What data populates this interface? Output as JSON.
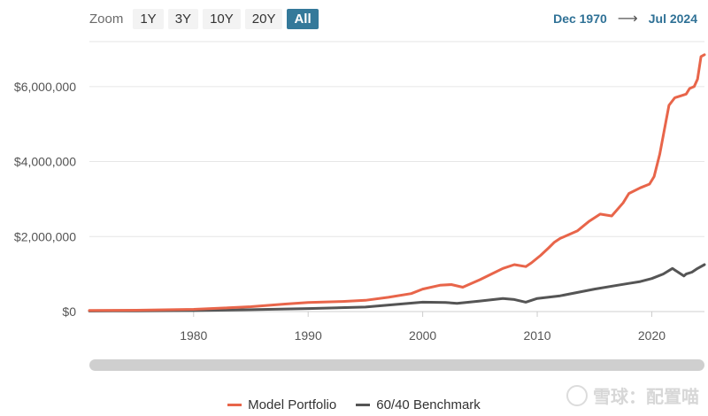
{
  "zoom": {
    "label": "Zoom",
    "buttons": [
      "1Y",
      "3Y",
      "10Y",
      "20Y",
      "All"
    ],
    "active": "All"
  },
  "range": {
    "from": "Dec 1970",
    "arrow": "⟶",
    "to": "Jul 2024"
  },
  "watermark": {
    "text": "雪球：配置喵"
  },
  "colors": {
    "model": "#e8654a",
    "benchmark": "#555555",
    "accent": "#34799a"
  },
  "chart_data": {
    "type": "line",
    "x_axis": {
      "ticks": [
        1980,
        1990,
        2000,
        2010,
        2020
      ],
      "range": [
        1970.9,
        2024.6
      ]
    },
    "y_axis": {
      "ticks": [
        0,
        2000000,
        4000000,
        6000000
      ],
      "tick_labels": [
        "$0",
        "$2,000,000",
        "$4,000,000",
        "$6,000,000"
      ],
      "range": [
        0,
        7200000
      ]
    },
    "grid": "horizontal",
    "legend_position": "bottom",
    "series": [
      {
        "name": "Model Portfolio",
        "color": "#e8654a",
        "x": [
          1970.9,
          1975,
          1980,
          1983,
          1985,
          1988,
          1990,
          1993,
          1995,
          1997,
          1999,
          2000,
          2001.5,
          2002.5,
          2003.5,
          2005,
          2006,
          2007,
          2008,
          2009,
          2009.5,
          2010.3,
          2011,
          2011.5,
          2012,
          2013.5,
          2014.5,
          2015.5,
          2016.5,
          2017.5,
          2018,
          2019,
          2019.8,
          2020.2,
          2020.7,
          2021.5,
          2022,
          2022.5,
          2023,
          2023.3,
          2023.7,
          2024,
          2024.3,
          2024.6
        ],
        "y": [
          30000,
          35000,
          60000,
          100000,
          130000,
          200000,
          240000,
          270000,
          300000,
          380000,
          480000,
          600000,
          700000,
          720000,
          650000,
          850000,
          1000000,
          1150000,
          1250000,
          1200000,
          1300000,
          1500000,
          1700000,
          1850000,
          1950000,
          2150000,
          2400000,
          2600000,
          2550000,
          2900000,
          3150000,
          3300000,
          3400000,
          3600000,
          4200000,
          5500000,
          5700000,
          5750000,
          5800000,
          5950000,
          6000000,
          6200000,
          6800000,
          6850000
        ]
      },
      {
        "name": "60/40 Benchmark",
        "color": "#555555",
        "x": [
          1970.9,
          1975,
          1980,
          1985,
          1990,
          1995,
          2000,
          2002,
          2003,
          2005,
          2007,
          2008,
          2009,
          2010,
          2012,
          2015,
          2017,
          2018,
          2019,
          2020,
          2021,
          2021.8,
          2022.3,
          2022.8,
          2023,
          2023.5,
          2024,
          2024.6
        ],
        "y": [
          15000,
          18000,
          25000,
          50000,
          80000,
          120000,
          250000,
          240000,
          220000,
          280000,
          350000,
          320000,
          250000,
          350000,
          420000,
          600000,
          700000,
          750000,
          800000,
          880000,
          1000000,
          1150000,
          1050000,
          950000,
          1000000,
          1050000,
          1150000,
          1250000
        ]
      }
    ]
  },
  "legend": {
    "model": "Model Portfolio",
    "benchmark": "60/40 Benchmark"
  }
}
